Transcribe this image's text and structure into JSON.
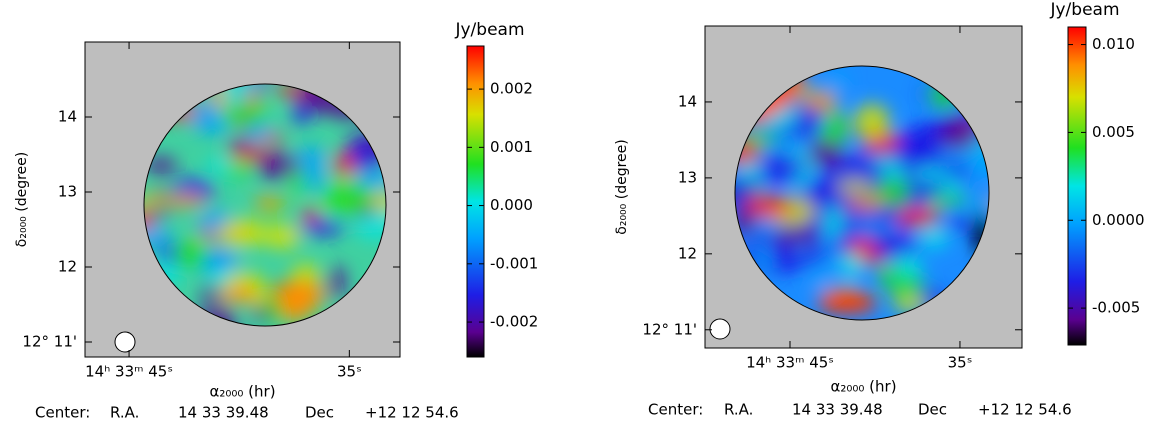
{
  "chart_data": [
    {
      "type": "heatmap",
      "xlabel": "α₂₀₀₀ (hr)",
      "ylabel": "δ₂₀₀₀ (degree)",
      "colorbar_label": "Jy/beam",
      "xlim": [
        47.0,
        32.7
      ],
      "xticks": [
        {
          "value": 45,
          "label": "14ʰ 33ᵐ 45ˢ"
        },
        {
          "value": 35,
          "label": "35ˢ"
        }
      ],
      "ylim": [
        10.8,
        15.0
      ],
      "yticks": [
        {
          "value": 11,
          "label": "12° 11'"
        },
        12,
        13,
        14
      ],
      "clim": [
        -0.0026,
        0.00274
      ],
      "cticks": [
        -0.002,
        -0.001,
        {
          "value": 0,
          "label": "0.000"
        },
        0.001,
        0.002
      ],
      "center": [
        "Center:",
        "R.A.",
        "14 33 39.48",
        "Dec",
        "+12 12 54.6"
      ]
    },
    {
      "type": "heatmap",
      "xlabel": "α₂₀₀₀ (hr)",
      "ylabel": "δ₂₀₀₀ (degree)",
      "colorbar_label": "Jy/beam",
      "xlim": [
        50.0,
        31.35
      ],
      "xticks": [
        {
          "value": 45,
          "label": "14ʰ 33ᵐ 45ˢ"
        },
        {
          "value": 35,
          "label": "35ˢ"
        }
      ],
      "ylim": [
        10.76,
        15.0
      ],
      "yticks": [
        {
          "value": 11,
          "label": "12° 11'"
        },
        12,
        13,
        14
      ],
      "clim": [
        -0.0071,
        0.011
      ],
      "cticks": [
        -0.005,
        {
          "value": 0,
          "label": "0.0000"
        },
        0.005,
        {
          "value": 0.01,
          "label": "0.010"
        }
      ],
      "center": [
        "Center:",
        "R.A.",
        "14 33 39.48",
        "Dec",
        "+12 12 54.6"
      ]
    }
  ]
}
